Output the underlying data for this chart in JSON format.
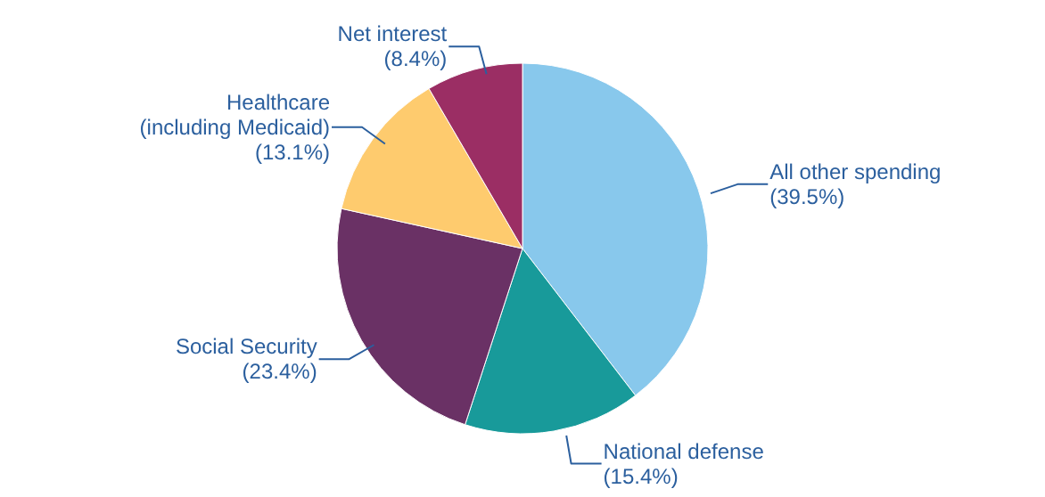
{
  "chart_data": {
    "type": "pie",
    "categories": [
      "All other spending",
      "National defense",
      "Social Security",
      "Healthcare (including Medicaid)",
      "Net interest"
    ],
    "values": [
      39.5,
      15.4,
      23.4,
      13.1,
      8.4
    ],
    "value_labels": [
      "(39.5%)",
      "(15.4%)",
      "(23.4%)",
      "(13.1%)",
      "(8.4%)"
    ],
    "colors": [
      "#88c8ec",
      "#189a9a",
      "#6a3165",
      "#fecb6e",
      "#9b2e64"
    ]
  }
}
